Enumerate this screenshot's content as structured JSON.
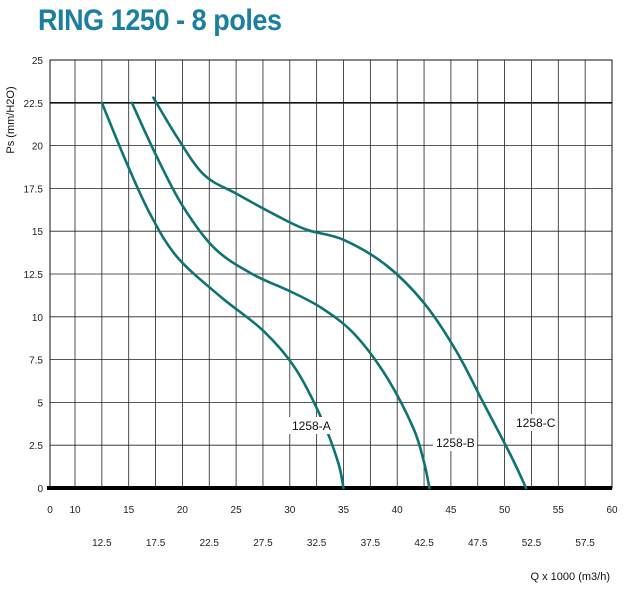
{
  "chart_data": {
    "type": "line",
    "title": "RING 1250 - 8 poles",
    "ylabel": "Ps  (mm/H2O)",
    "xlabel": "Q x 1000 (m3/h)",
    "xlim": [
      0,
      60
    ],
    "ylim": [
      0,
      25
    ],
    "grid": true,
    "x_ticks_upper": [
      "0",
      "10",
      "15",
      "20",
      "25",
      "30",
      "35",
      "40",
      "45",
      "50",
      "55",
      "60"
    ],
    "x_ticks_lower": [
      "12.5",
      "17.5",
      "22.5",
      "27.5",
      "32.5",
      "37.5",
      "42.5",
      "47.5",
      "52.5",
      "57.5"
    ],
    "y_ticks": [
      "0",
      "2.5",
      "5",
      "7.5",
      "10",
      "12.5",
      "15",
      "17.5",
      "20",
      "22.5",
      "25"
    ],
    "series": [
      {
        "name": "1258-A",
        "color": "#0f7373",
        "x": [
          12.5,
          14.8,
          17.0,
          19.5,
          23.5,
          27.5,
          30.5,
          33.0,
          34.5,
          35.0
        ],
        "y": [
          22.5,
          19.0,
          16.0,
          13.5,
          11.2,
          9.2,
          7.0,
          4.0,
          1.5,
          0
        ]
      },
      {
        "name": "1258-B",
        "color": "#0f7373",
        "x": [
          15.3,
          17.5,
          20.0,
          23.0,
          26.5,
          30.0,
          33.0,
          36.0,
          39.0,
          41.5,
          42.5,
          43.0
        ],
        "y": [
          22.5,
          19.5,
          16.5,
          14.0,
          12.5,
          11.5,
          10.5,
          9.0,
          6.5,
          3.5,
          1.5,
          0
        ]
      },
      {
        "name": "1258-C",
        "color": "#0f7373",
        "x": [
          17.3,
          19.5,
          22.0,
          25.0,
          28.5,
          31.5,
          35.0,
          39.0,
          42.5,
          45.5,
          48.0,
          50.5,
          52.0
        ],
        "y": [
          22.8,
          20.5,
          18.3,
          17.2,
          16.0,
          15.1,
          14.5,
          13.0,
          10.8,
          8.0,
          5.0,
          2.0,
          0
        ]
      }
    ]
  }
}
